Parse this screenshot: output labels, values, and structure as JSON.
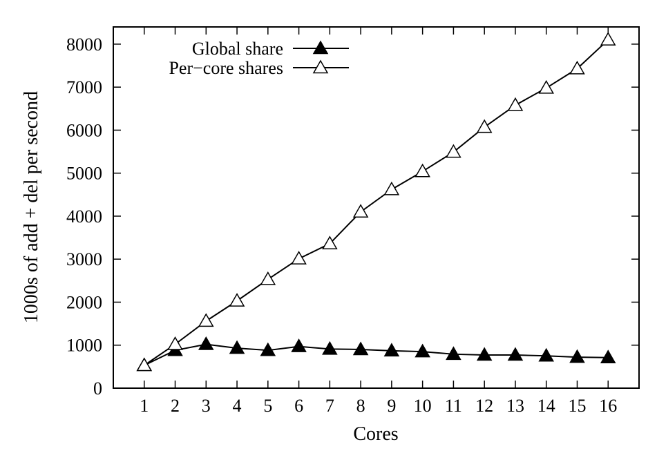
{
  "chart_data": {
    "type": "line",
    "title": "",
    "xlabel": "Cores",
    "ylabel": "1000s of add + del per second",
    "x": [
      1,
      2,
      3,
      4,
      5,
      6,
      7,
      8,
      9,
      10,
      11,
      12,
      13,
      14,
      15,
      16
    ],
    "xlim": [
      0,
      17
    ],
    "ylim": [
      0,
      8400
    ],
    "xticks": [
      1,
      2,
      3,
      4,
      5,
      6,
      7,
      8,
      9,
      10,
      11,
      12,
      13,
      14,
      15,
      16
    ],
    "yticks": [
      0,
      1000,
      2000,
      3000,
      4000,
      5000,
      6000,
      7000,
      8000
    ],
    "grid": false,
    "legend_position": "top-left",
    "series": [
      {
        "name": "Global share",
        "marker": "filled-triangle",
        "values": [
          530,
          880,
          1020,
          930,
          880,
          970,
          910,
          900,
          870,
          850,
          790,
          770,
          770,
          750,
          720,
          710
        ]
      },
      {
        "name": "Per−core shares",
        "marker": "open-triangle",
        "values": [
          530,
          1020,
          1560,
          2030,
          2530,
          3010,
          3360,
          4100,
          4620,
          5040,
          5490,
          6070,
          6580,
          6980,
          7430,
          8100
        ]
      }
    ]
  }
}
